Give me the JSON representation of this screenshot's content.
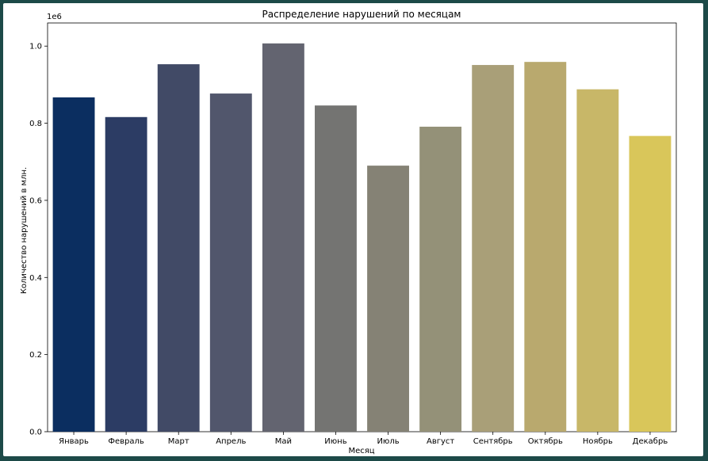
{
  "chart_data": {
    "type": "bar",
    "title": "Распределение нарушений по месяцам",
    "xlabel": "Месяц",
    "ylabel": "Количество нарушений в млн.",
    "scale_label": "1e6",
    "categories": [
      "Январь",
      "Февраль",
      "Март",
      "Апрель",
      "Май",
      "Июнь",
      "Июль",
      "Август",
      "Сентябрь",
      "Октябрь",
      "Ноябрь",
      "Декабрь"
    ],
    "values": [
      867000,
      816000,
      953000,
      877000,
      1007000,
      846000,
      690000,
      791000,
      951000,
      959000,
      888000,
      767000
    ],
    "yticks": [
      0.0,
      0.2,
      0.4,
      0.6,
      0.8,
      1.0
    ],
    "ytick_labels": [
      "0.0",
      "0.2",
      "0.4",
      "0.6",
      "0.8",
      "1.0"
    ],
    "ylim": [
      0,
      1060000
    ],
    "colors": [
      "#0b2e60",
      "#2c3c64",
      "#414a66",
      "#51566c",
      "#636470",
      "#747472",
      "#858275",
      "#949178",
      "#a99f78",
      "#b9a96e",
      "#c8b768",
      "#d9c65a"
    ],
    "grid": false,
    "legend": "none"
  }
}
